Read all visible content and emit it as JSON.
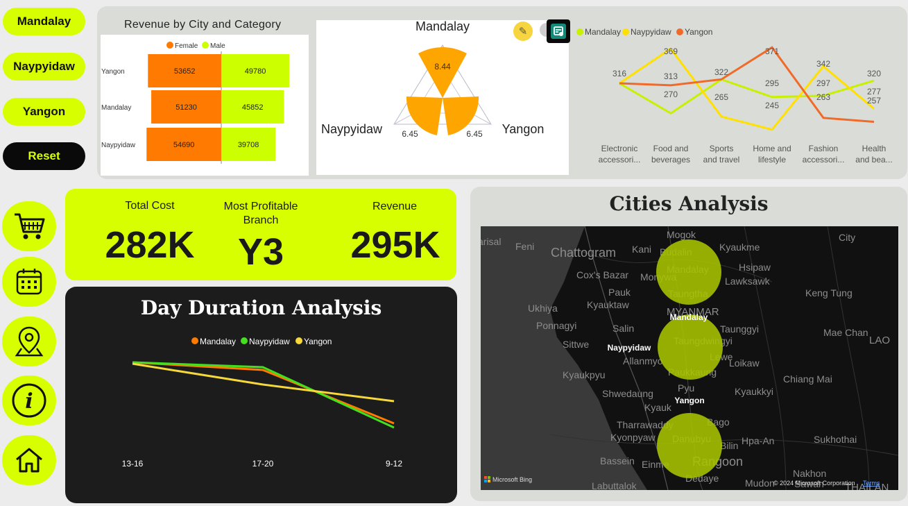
{
  "city_buttons": [
    {
      "label": "Mandalay"
    },
    {
      "label": "Naypyidaw"
    },
    {
      "label": "Yangon"
    },
    {
      "label": "Reset"
    }
  ],
  "nav_icons": [
    "cart-icon",
    "calendar-icon",
    "location-pin-icon",
    "info-icon",
    "home-icon"
  ],
  "revenue_chart": {
    "title": "Revenue by City and Category",
    "legend": [
      {
        "name": "Female",
        "color": "#ff7a00"
      },
      {
        "name": "Male",
        "color": "#ccff00"
      }
    ],
    "rows": [
      {
        "city": "Yangon",
        "female": 53652,
        "male": 49780
      },
      {
        "city": "Mandalay",
        "female": 51230,
        "male": 45852
      },
      {
        "city": "Naypyidaw",
        "female": 54690,
        "male": 39708
      }
    ]
  },
  "radar_chart": {
    "labels": {
      "top": "Mandalay",
      "left": "Naypyidaw",
      "right": "Yangon"
    },
    "values": {
      "top": "8.44",
      "left": "6.45",
      "right": "6.45"
    }
  },
  "line_category_chart": {
    "legend": [
      {
        "name": "Mandalay",
        "color": "#c8f000"
      },
      {
        "name": "Naypyidaw",
        "color": "#ffe000"
      },
      {
        "name": "Yangon",
        "color": "#f06a2a"
      }
    ],
    "categories": [
      "Electronic accessori...",
      "Food and beverages",
      "Sports and travel",
      "Home and lifestyle",
      "Fashion accessori...",
      "Health and bea..."
    ],
    "series": [
      {
        "name": "Mandalay",
        "values": [
          316,
          270,
          322,
          295,
          297,
          320
        ]
      },
      {
        "name": "Naypyidaw",
        "values": [
          316,
          369,
          265,
          245,
          342,
          277
        ]
      },
      {
        "name": "Yangon",
        "values": [
          316,
          313,
          322,
          371,
          263,
          257
        ]
      }
    ],
    "point_labels": {
      "Electronic": "316",
      "Food_top": "369",
      "Food_mid": "313",
      "Food_low": "270",
      "Sports_top": "322",
      "Sports_low": "265",
      "Home_top": "371",
      "Home_mid": "295",
      "Home_low": "245",
      "Fashion_top": "342",
      "Fashion_mid": "297",
      "Fashion_low": "263",
      "Health_top": "320",
      "Health_mid": "277",
      "Health_low": "257"
    }
  },
  "kpis": {
    "cost": {
      "title": "Total Cost",
      "value": "282K"
    },
    "branch": {
      "title": "Most Profitable Branch",
      "value": "Y3"
    },
    "revenue": {
      "title": "Revenue",
      "value": "295K"
    }
  },
  "day_chart": {
    "title": "Day Duration Analysis",
    "legend": [
      {
        "name": "Mandalay",
        "color": "#ff7a00"
      },
      {
        "name": "Naypyidaw",
        "color": "#44e020"
      },
      {
        "name": "Yangon",
        "color": "#f6d83c"
      }
    ],
    "categories": [
      "13-16",
      "17-20",
      "9-12"
    ]
  },
  "map": {
    "title": "Cities Analysis",
    "bubbles": [
      {
        "label": "Mandalay"
      },
      {
        "label": "Naypyidaw"
      },
      {
        "label": "Yangon"
      }
    ],
    "place_names": [
      "Mogok",
      "Kani",
      "Budalin",
      "Kyaukme",
      "Chattogram",
      "Feni",
      "arisal",
      "Cox's Bazar",
      "Monywa",
      "Hsipaw",
      "Mandalay",
      "Lawksawk",
      "Pauk",
      "Taungtha",
      "Kyauktaw",
      "Keng Tung",
      "Ukhiya",
      "MYANMAR",
      "Ponnagyi",
      "Salin",
      "Taunggyi",
      "Mae Chan",
      "Sittwe",
      "Taungdwingyi",
      "LAO",
      "Allanmyo",
      "Lewe",
      "Loikaw",
      "Kyaukpyu",
      "Paukkaung",
      "Chiang Mai",
      "Shwedaung",
      "Pyu",
      "Kyaukkyi",
      "Kyauk",
      "Tharrawaddy",
      "Bago",
      "Kyonpyaw",
      "Danubyu",
      "Bilin",
      "Hpa-An",
      "Sukhothai",
      "Bassein",
      "Einme",
      "Rangoon",
      "Nakhon",
      "Sawan",
      "Labuttalok",
      "Dedaye",
      "Mudon",
      "THAILAN",
      "City"
    ],
    "bing": "Microsoft Bing",
    "copyright": "© 2024 Microsoft Corporation",
    "terms": "Terms"
  }
}
